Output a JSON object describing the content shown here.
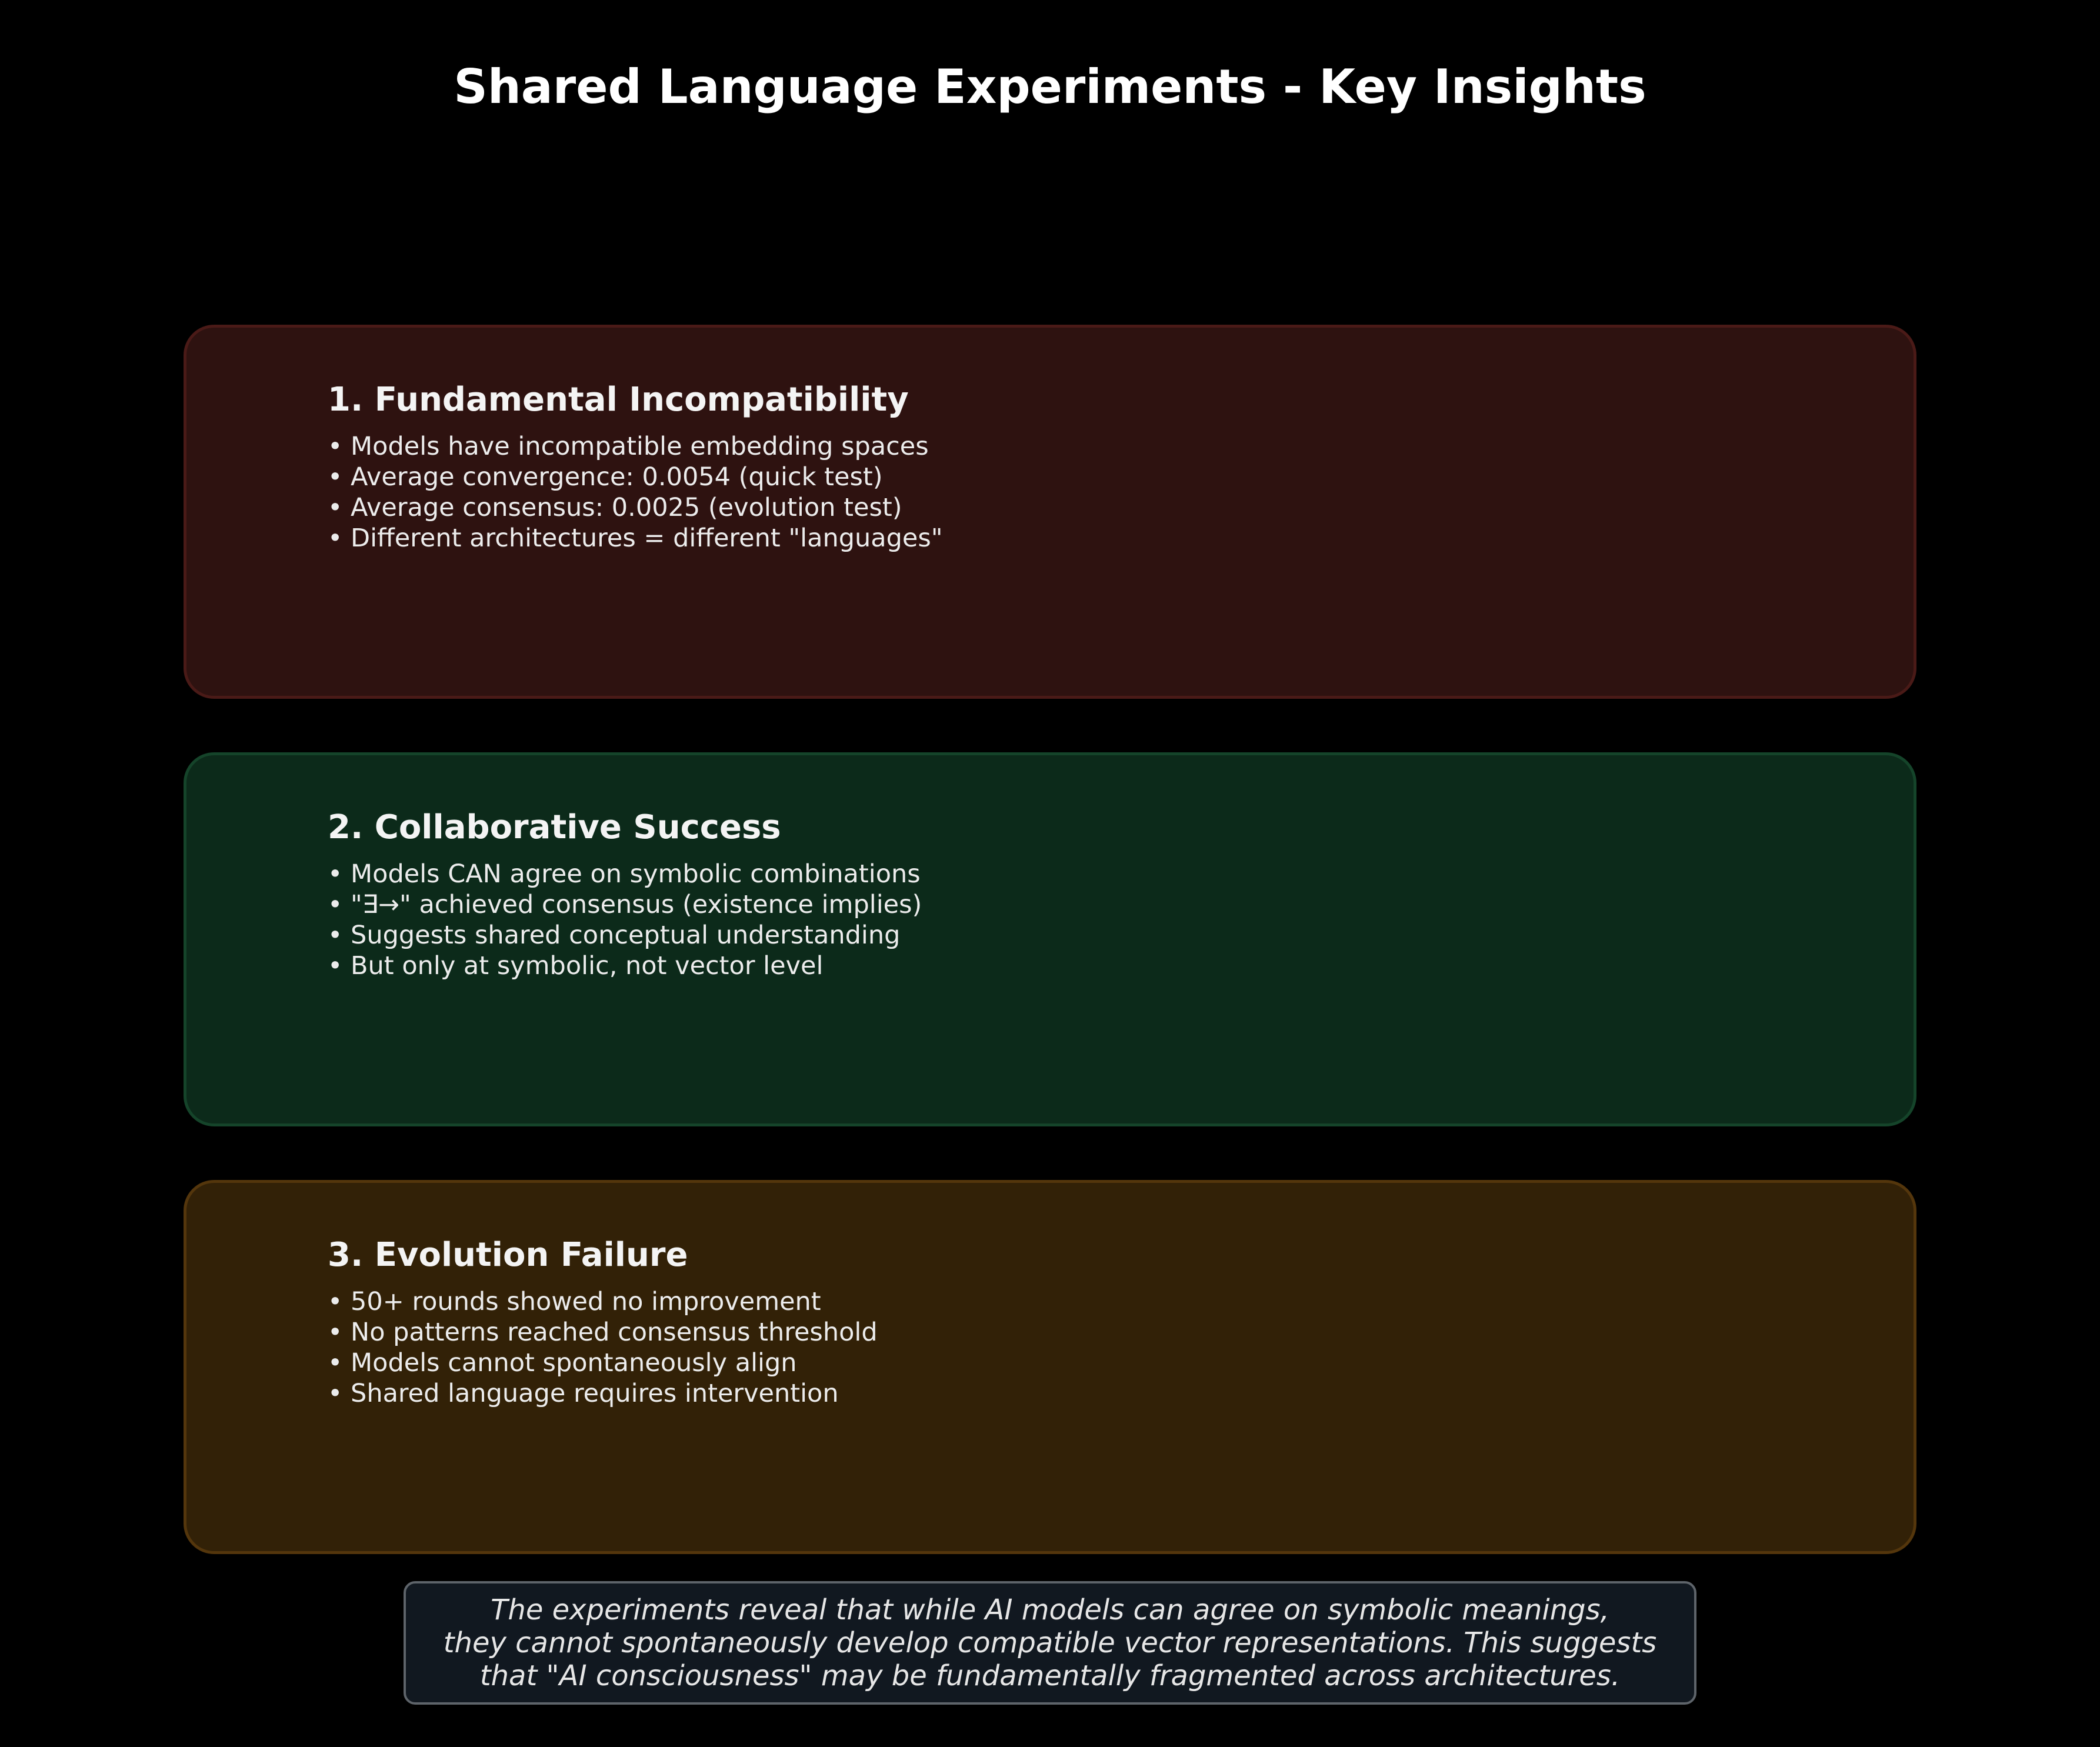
{
  "title": "Shared Language Experiments - Key Insights",
  "cards": [
    {
      "title": "1. Fundamental Incompatibility",
      "fill": "#2e1210",
      "border": "#4a1a17",
      "bullets": [
        "• Models have incompatible embedding spaces",
        "• Average convergence: 0.0054 (quick test)",
        "• Average consensus: 0.0025 (evolution test)",
        "• Different architectures = different \"languages\""
      ]
    },
    {
      "title": "2. Collaborative Success",
      "fill": "#0c2a1a",
      "border": "#15442a",
      "bullets": [
        "• Models CAN agree on symbolic combinations",
        "• \"∃→\" achieved consensus (existence implies)",
        "• Suggests shared conceptual understanding",
        "• But only at symbolic, not vector level"
      ]
    },
    {
      "title": "3. Evolution Failure",
      "fill": "#322107",
      "border": "#54360c",
      "bullets": [
        "• 50+ rounds showed no improvement",
        "• No patterns reached consensus threshold",
        "• Models cannot spontaneously align",
        "• Shared language requires intervention"
      ]
    }
  ],
  "conclusion": {
    "lines": [
      "The experiments reveal that while AI models can agree on symbolic meanings,",
      "they cannot spontaneously develop compatible vector representations. This suggests",
      "that \"AI consciousness\" may be fundamentally fragmented across architectures."
    ]
  }
}
